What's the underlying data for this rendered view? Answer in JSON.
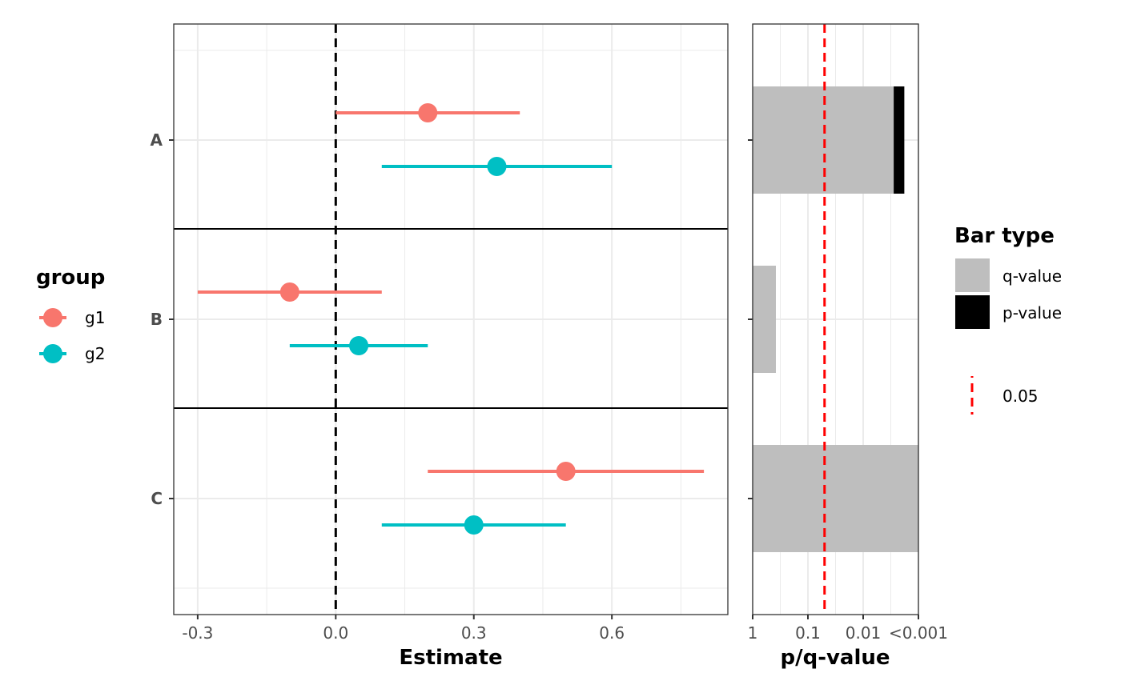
{
  "chart_data": [
    {
      "type": "forest",
      "title": "",
      "xlabel": "Estimate",
      "ylabel": "",
      "xlim": [
        -0.352,
        0.852
      ],
      "xticks": [
        -0.3,
        0.0,
        0.3,
        0.6
      ],
      "xtick_labels": [
        "-0.3",
        "0.0",
        "0.3",
        "0.6"
      ],
      "categories": [
        "A",
        "B",
        "C"
      ],
      "reference_line": 0.0,
      "grid": true,
      "series": [
        {
          "name": "g1",
          "color": "#F8766D",
          "estimate": [
            0.2,
            -0.1,
            0.5
          ],
          "lower": [
            0.0,
            -0.3,
            0.2
          ],
          "upper": [
            0.4,
            0.1,
            0.8
          ]
        },
        {
          "name": "g2",
          "color": "#00BFC4",
          "estimate": [
            0.35,
            0.05,
            0.3
          ],
          "lower": [
            0.1,
            -0.1,
            0.1
          ],
          "upper": [
            0.6,
            0.2,
            0.5
          ]
        }
      ],
      "legend": {
        "title": "group",
        "position": "left",
        "entries": [
          "g1",
          "g2"
        ]
      }
    },
    {
      "type": "bar",
      "orientation": "horizontal",
      "xlabel": "p/q-value",
      "x_scale": "-log10",
      "xlim_neglog10": [
        0,
        3
      ],
      "xticks": [
        1,
        0.1,
        0.01,
        0.001
      ],
      "xtick_labels": [
        "1",
        "0.1",
        "0.01",
        "<0.001"
      ],
      "categories": [
        "A",
        "B",
        "C"
      ],
      "series": [
        {
          "name": "q-value",
          "color": "#BEBEBE",
          "values": [
            0.0028,
            0.38,
            0.001
          ]
        },
        {
          "name": "p-value",
          "color": "#000000",
          "values": [
            0.0018,
            null,
            null
          ]
        }
      ],
      "threshold": {
        "value": 0.05,
        "label": "0.05",
        "color": "#FF0000",
        "style": "dashed"
      },
      "grid": true,
      "legend": {
        "title": "Bar type",
        "position": "right",
        "entries": [
          "q-value",
          "p-value"
        ],
        "threshold_entry": "0.05"
      }
    }
  ]
}
